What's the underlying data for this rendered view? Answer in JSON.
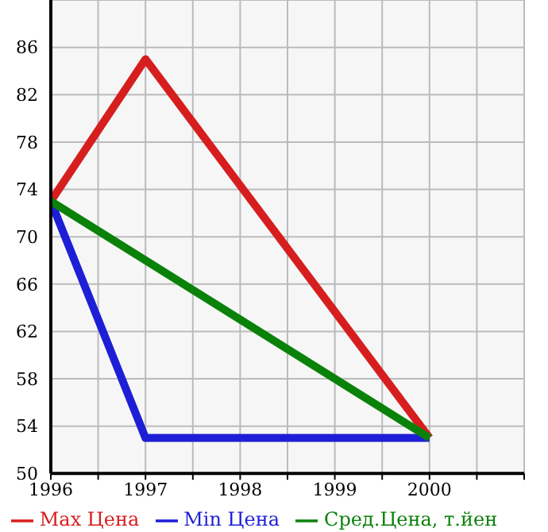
{
  "chart_data": {
    "type": "line",
    "x": [
      1996,
      1997,
      2000
    ],
    "xlim": [
      1996,
      2001
    ],
    "xticks": [
      1996,
      {
        "value": 1996.5,
        "label": null
      },
      1997,
      {
        "value": 1997.5,
        "label": null
      },
      1998,
      {
        "value": 1998.5,
        "label": null
      },
      1999,
      {
        "value": 1999.5,
        "label": null
      },
      2000,
      {
        "value": 2000.5,
        "label": null
      },
      {
        "value": 2001,
        "label": null
      }
    ],
    "ylim": [
      50,
      90
    ],
    "yticks": [
      50,
      54,
      58,
      62,
      66,
      70,
      74,
      78,
      82,
      86,
      {
        "value": 90,
        "label": null
      }
    ],
    "grid": true,
    "legend": "bottom",
    "marker": "none",
    "line_style": "solid",
    "series": [
      {
        "name": "Max Цена",
        "color": "#d71e1e",
        "values": [
          73,
          85,
          53
        ]
      },
      {
        "name": "Min Цена",
        "color": "#1e1ed7",
        "values": [
          73,
          53,
          53
        ]
      },
      {
        "name": "Сред.Цена, т.йен",
        "color": "#0a820a",
        "values": [
          73,
          null,
          53
        ]
      }
    ]
  }
}
